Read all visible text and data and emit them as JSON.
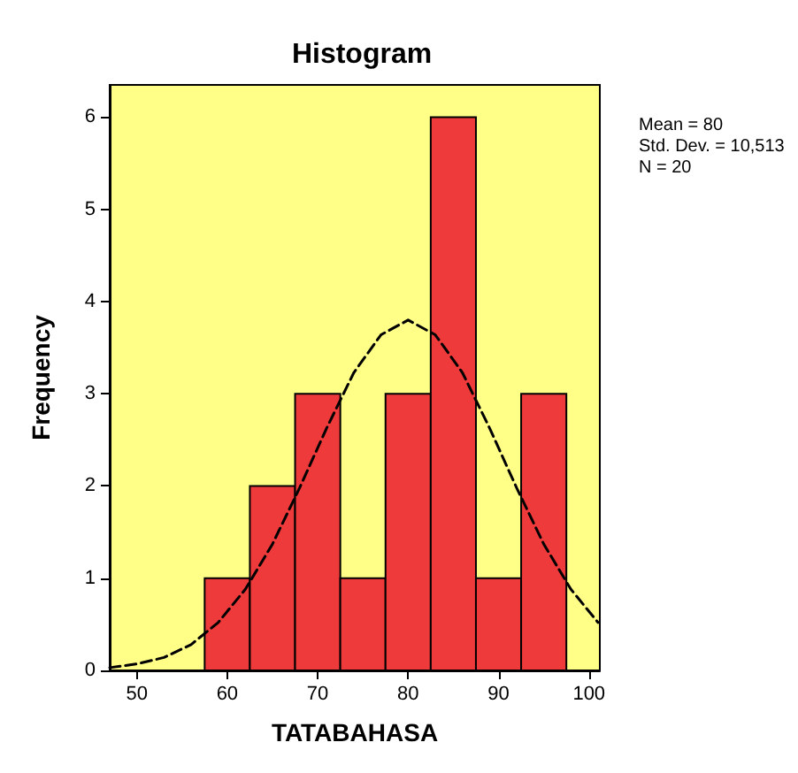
{
  "chart_data": {
    "type": "histogram",
    "title": "Histogram",
    "xlabel": "TATABAHASA",
    "ylabel": "Frequency",
    "bins": [
      57.5,
      62.5,
      67.5,
      72.5,
      77.5,
      82.5,
      87.5,
      92.5,
      97.5
    ],
    "values": [
      1,
      2,
      3,
      1,
      3,
      6,
      1,
      3
    ],
    "color": "#ee3a3a",
    "xlim": [
      47,
      101.2
    ],
    "xticks": [
      50,
      60,
      70,
      80,
      90,
      100
    ],
    "ylim": [
      0,
      6.35
    ],
    "yticks": [
      0,
      1,
      2,
      3,
      4,
      5,
      6
    ],
    "grid": false,
    "series": [
      {
        "type": "line",
        "color": "#000000",
        "line_style": "dashed",
        "marker": "none",
        "x": [
          47,
          50,
          53,
          56,
          59,
          62,
          65,
          68,
          71,
          74,
          77,
          80,
          83,
          86,
          89,
          92,
          95,
          98,
          101
        ],
        "values": [
          0.03,
          0.07,
          0.14,
          0.28,
          0.52,
          0.88,
          1.37,
          1.98,
          2.63,
          3.23,
          3.64,
          3.8,
          3.64,
          3.23,
          2.63,
          1.98,
          1.37,
          0.88,
          0.52
        ]
      }
    ],
    "annotations": [
      "Mean = 80",
      "Std. Dev. = 10,513",
      "N = 20"
    ]
  }
}
